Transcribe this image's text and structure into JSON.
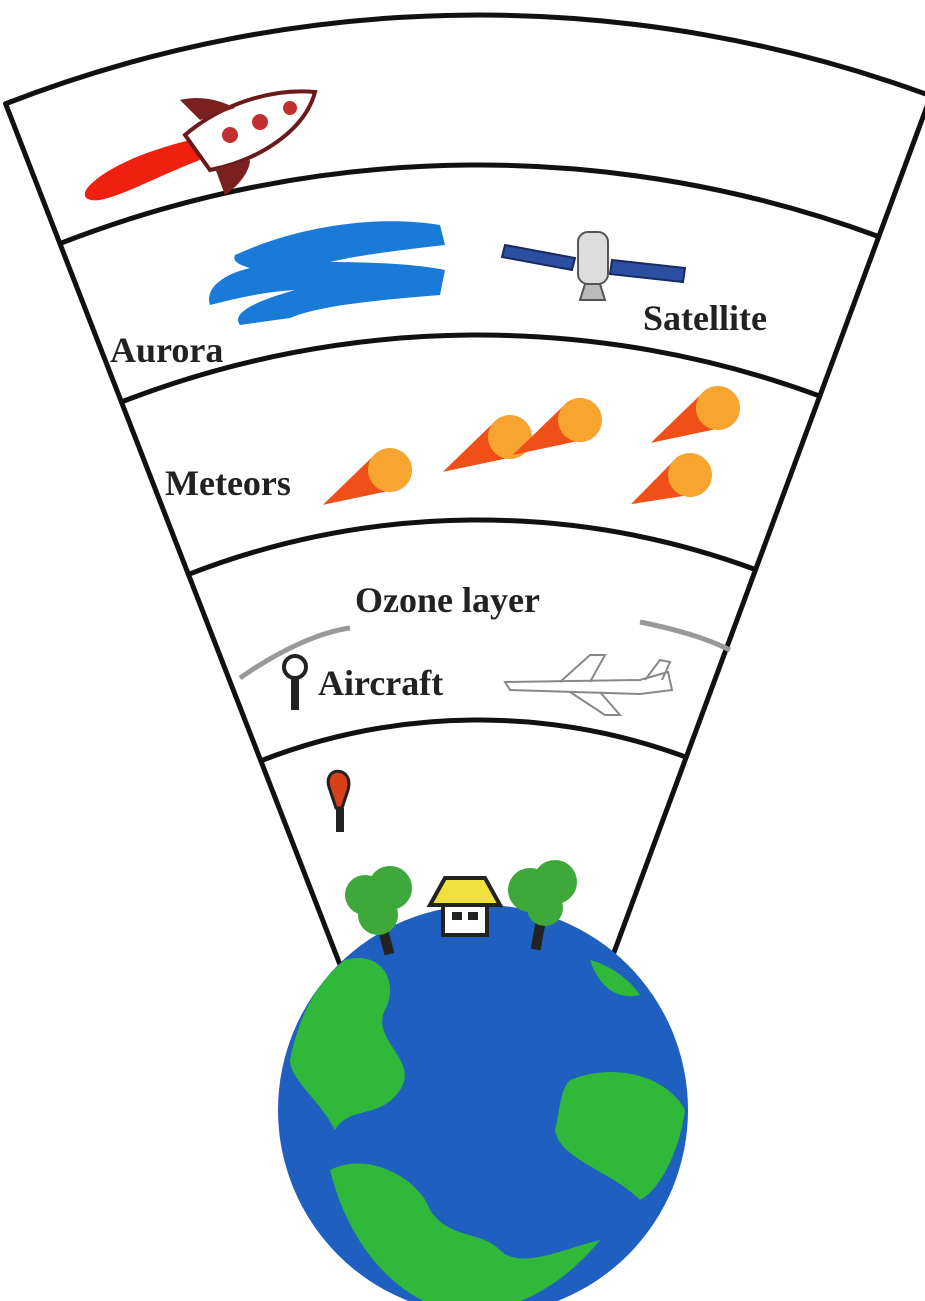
{
  "labels": [
    "Aurora",
    "Satellite",
    "Meteors",
    "Ozone layer",
    "Aircraft"
  ]
}
